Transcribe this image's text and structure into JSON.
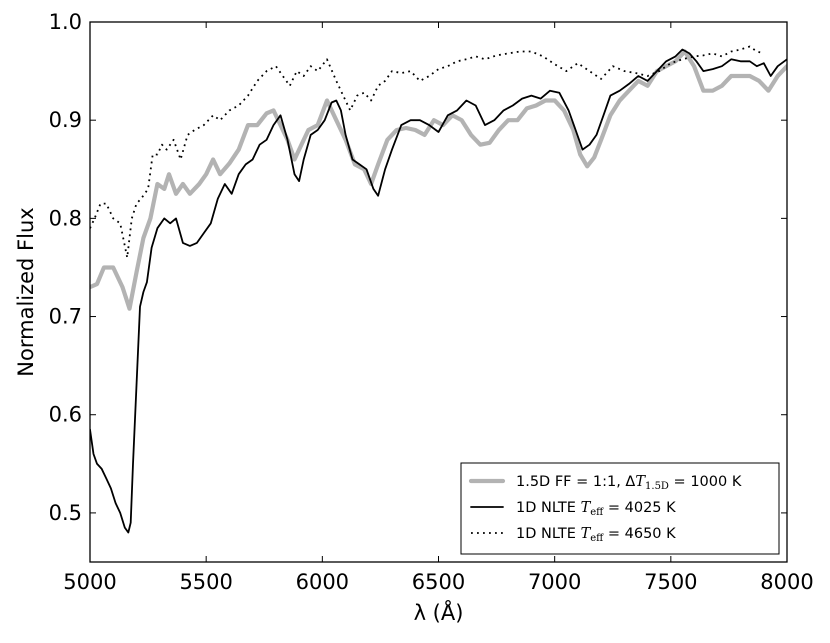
{
  "chart_data": {
    "type": "line",
    "title": "",
    "xlabel": "λ (Å)",
    "ylabel": "Normalized Flux",
    "xlim": [
      5000,
      8000
    ],
    "ylim": [
      0.45,
      1.0
    ],
    "xticks": [
      5000,
      5500,
      6000,
      6500,
      7000,
      7500,
      8000
    ],
    "yticks": [
      0.5,
      0.6,
      0.7,
      0.8,
      0.9,
      1.0
    ],
    "xtick_labels": [
      "5000",
      "5500",
      "6000",
      "6500",
      "7000",
      "7500",
      "8000"
    ],
    "ytick_labels": [
      "0.5",
      "0.6",
      "0.7",
      "0.8",
      "0.9",
      "1.0"
    ],
    "grid": false,
    "legend_position": "lower-right",
    "series": [
      {
        "name": "1.5D FF = 1:1, ΔT1.5D = 1000 K",
        "legend_label": {
          "pre": "1.5D FF = 1:1, Δ",
          "var": "T",
          "sub": "1.5D",
          "post": " = 1000 K"
        },
        "color": "#b3b3b3",
        "style": "solid-thick",
        "x": [
          5000,
          5030,
          5060,
          5100,
          5140,
          5170,
          5200,
          5230,
          5260,
          5290,
          5320,
          5340,
          5370,
          5400,
          5430,
          5470,
          5500,
          5530,
          5560,
          5600,
          5640,
          5680,
          5720,
          5760,
          5790,
          5820,
          5850,
          5880,
          5910,
          5940,
          5980,
          6020,
          6060,
          6100,
          6140,
          6180,
          6210,
          6240,
          6280,
          6320,
          6360,
          6400,
          6440,
          6480,
          6520,
          6560,
          6600,
          6640,
          6680,
          6720,
          6760,
          6800,
          6840,
          6880,
          6920,
          6960,
          7000,
          7040,
          7080,
          7110,
          7140,
          7170,
          7200,
          7240,
          7280,
          7320,
          7360,
          7400,
          7440,
          7480,
          7520,
          7560,
          7600,
          7640,
          7680,
          7720,
          7760,
          7800,
          7840,
          7880,
          7920,
          7960,
          8000
        ],
        "y": [
          0.73,
          0.733,
          0.75,
          0.75,
          0.73,
          0.708,
          0.745,
          0.78,
          0.8,
          0.835,
          0.83,
          0.845,
          0.825,
          0.835,
          0.825,
          0.835,
          0.845,
          0.86,
          0.845,
          0.856,
          0.87,
          0.895,
          0.895,
          0.907,
          0.91,
          0.895,
          0.88,
          0.86,
          0.875,
          0.89,
          0.895,
          0.92,
          0.9,
          0.88,
          0.855,
          0.85,
          0.835,
          0.855,
          0.88,
          0.89,
          0.892,
          0.89,
          0.885,
          0.9,
          0.895,
          0.905,
          0.9,
          0.885,
          0.875,
          0.877,
          0.89,
          0.9,
          0.9,
          0.912,
          0.915,
          0.92,
          0.92,
          0.91,
          0.89,
          0.865,
          0.853,
          0.862,
          0.88,
          0.905,
          0.92,
          0.93,
          0.94,
          0.935,
          0.95,
          0.955,
          0.96,
          0.97,
          0.955,
          0.93,
          0.93,
          0.935,
          0.945,
          0.945,
          0.945,
          0.94,
          0.93,
          0.945,
          0.955
        ]
      },
      {
        "name": "1D NLTE Teff = 4025 K",
        "legend_label": {
          "pre": "1D NLTE ",
          "var": "T",
          "sub": "eff",
          "post": " = 4025 K"
        },
        "color": "#000000",
        "style": "solid",
        "x": [
          5000,
          5015,
          5030,
          5050,
          5070,
          5090,
          5110,
          5130,
          5150,
          5165,
          5175,
          5185,
          5200,
          5215,
          5230,
          5245,
          5265,
          5290,
          5320,
          5345,
          5370,
          5400,
          5430,
          5460,
          5490,
          5520,
          5550,
          5580,
          5610,
          5640,
          5670,
          5700,
          5730,
          5760,
          5790,
          5820,
          5850,
          5880,
          5900,
          5920,
          5950,
          5980,
          6010,
          6040,
          6060,
          6080,
          6100,
          6130,
          6160,
          6190,
          6220,
          6240,
          6270,
          6300,
          6340,
          6380,
          6420,
          6460,
          6500,
          6540,
          6580,
          6620,
          6660,
          6700,
          6740,
          6780,
          6820,
          6860,
          6900,
          6940,
          6980,
          7020,
          7060,
          7090,
          7120,
          7150,
          7180,
          7210,
          7240,
          7280,
          7320,
          7360,
          7400,
          7440,
          7480,
          7520,
          7550,
          7580,
          7610,
          7640,
          7680,
          7720,
          7760,
          7800,
          7840,
          7870,
          7900,
          7930,
          7960,
          8000
        ],
        "y": [
          0.585,
          0.56,
          0.55,
          0.545,
          0.535,
          0.525,
          0.51,
          0.5,
          0.485,
          0.48,
          0.49,
          0.55,
          0.63,
          0.71,
          0.725,
          0.735,
          0.77,
          0.79,
          0.8,
          0.795,
          0.8,
          0.775,
          0.772,
          0.775,
          0.785,
          0.795,
          0.82,
          0.835,
          0.825,
          0.845,
          0.855,
          0.86,
          0.875,
          0.88,
          0.895,
          0.905,
          0.88,
          0.845,
          0.838,
          0.86,
          0.885,
          0.89,
          0.9,
          0.918,
          0.92,
          0.91,
          0.885,
          0.86,
          0.855,
          0.85,
          0.83,
          0.823,
          0.85,
          0.87,
          0.895,
          0.9,
          0.9,
          0.895,
          0.888,
          0.905,
          0.91,
          0.92,
          0.915,
          0.895,
          0.9,
          0.91,
          0.915,
          0.922,
          0.925,
          0.922,
          0.93,
          0.928,
          0.91,
          0.89,
          0.87,
          0.875,
          0.885,
          0.905,
          0.925,
          0.93,
          0.937,
          0.945,
          0.94,
          0.95,
          0.96,
          0.965,
          0.972,
          0.968,
          0.96,
          0.95,
          0.952,
          0.955,
          0.962,
          0.96,
          0.96,
          0.955,
          0.958,
          0.945,
          0.955,
          0.962
        ]
      },
      {
        "name": "1D NLTE Teff = 4650 K",
        "legend_label": {
          "pre": "1D NLTE ",
          "var": "T",
          "sub": "eff",
          "post": " = 4650 K"
        },
        "color": "#000000",
        "style": "dotted",
        "x": [
          5000,
          5020,
          5045,
          5070,
          5100,
          5130,
          5160,
          5180,
          5200,
          5220,
          5250,
          5270,
          5290,
          5310,
          5330,
          5360,
          5390,
          5420,
          5450,
          5490,
          5530,
          5560,
          5600,
          5640,
          5680,
          5720,
          5760,
          5800,
          5830,
          5860,
          5890,
          5920,
          5950,
          5980,
          6020,
          6060,
          6090,
          6120,
          6150,
          6180,
          6210,
          6240,
          6270,
          6300,
          6340,
          6380,
          6420,
          6460,
          6500,
          6540,
          6580,
          6620,
          6660,
          6700,
          6750,
          6800,
          6850,
          6900,
          6950,
          7000,
          7050,
          7100,
          7150,
          7200,
          7250,
          7300,
          7350,
          7400,
          7450,
          7500,
          7550,
          7600,
          7640,
          7680,
          7720,
          7760,
          7800,
          7840,
          7870,
          7900
        ],
        "y": [
          0.79,
          0.8,
          0.815,
          0.815,
          0.8,
          0.795,
          0.76,
          0.8,
          0.815,
          0.82,
          0.83,
          0.865,
          0.865,
          0.875,
          0.87,
          0.88,
          0.86,
          0.885,
          0.89,
          0.895,
          0.905,
          0.9,
          0.91,
          0.915,
          0.925,
          0.94,
          0.95,
          0.955,
          0.945,
          0.935,
          0.95,
          0.945,
          0.955,
          0.95,
          0.962,
          0.94,
          0.925,
          0.91,
          0.925,
          0.928,
          0.92,
          0.935,
          0.94,
          0.95,
          0.948,
          0.95,
          0.94,
          0.945,
          0.952,
          0.955,
          0.96,
          0.962,
          0.965,
          0.962,
          0.966,
          0.968,
          0.97,
          0.97,
          0.965,
          0.957,
          0.95,
          0.958,
          0.95,
          0.942,
          0.955,
          0.95,
          0.948,
          0.945,
          0.95,
          0.958,
          0.962,
          0.965,
          0.966,
          0.968,
          0.965,
          0.97,
          0.972,
          0.975,
          0.97,
          0.968
        ]
      }
    ]
  }
}
